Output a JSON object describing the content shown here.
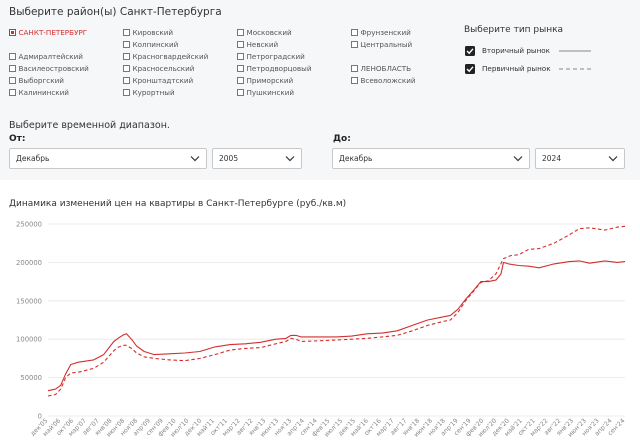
{
  "districts": {
    "title": "Выберите район(ы) Санкт-Петербурга",
    "columns": [
      [
        "САНКТ-ПЕТЕРБУРГ",
        "",
        "Адмиралтейский",
        "Василеостровский",
        "Выборгский",
        "Калининский"
      ],
      [
        "Кировский",
        "Колпинский",
        "Красногвардейский",
        "Красносельский",
        "Кронштадтский",
        "Курортный"
      ],
      [
        "Московский",
        "Невский",
        "Петроградский",
        "Петродворцовый",
        "Приморский",
        "Пушкинский"
      ],
      [
        "Фрунзенский",
        "Центральный",
        "",
        "ЛЕНОБЛАСТЬ",
        "Всеволожский",
        ""
      ]
    ]
  },
  "market": {
    "title": "Выберите тип рынка",
    "items": [
      {
        "label": "Вторичный рынок",
        "line": "solid"
      },
      {
        "label": "Первичный рынок",
        "line": "dashed"
      }
    ]
  },
  "range": {
    "title": "Выберите временной диапазон.",
    "from_label": "От:",
    "to_label": "До:",
    "from_month": "Декабрь",
    "from_year": "2005",
    "to_month": "Декабрь",
    "to_year": "2024"
  },
  "chart_data": {
    "type": "line",
    "title": "Динамика изменений цен на квартиры в Санкт-Петербурге (руб./кв.м)",
    "xlabel": "",
    "ylabel": "",
    "ylim": [
      0,
      250000
    ],
    "yticks": [
      "0",
      "50000",
      "100000",
      "150000",
      "200000",
      "250000"
    ],
    "grid": true,
    "color": "#d32f2f",
    "x_ticks": [
      "дек'05",
      "май'06",
      "окт'06",
      "мар'07",
      "авг'07",
      "янв'08",
      "июн'08",
      "ноя'08",
      "апр'09",
      "сен'09",
      "фев'10",
      "июл'10",
      "дек'10",
      "май'11",
      "окт'11",
      "мар'12",
      "авг'12",
      "янв'13",
      "июн'13",
      "ноя'13",
      "апр'14",
      "сен'14",
      "фев'15",
      "июл'15",
      "дек'15",
      "май'16",
      "окт'16",
      "мар'17",
      "авг'17",
      "янв'18",
      "июн'18",
      "ноя'18",
      "апр'19",
      "сен'19",
      "фев'20",
      "июл'20",
      "дек'20",
      "май'21",
      "окт'21",
      "мар'22",
      "авг'22",
      "янв'23",
      "июн'23",
      "ноя'23",
      "апр'24",
      "сен'24"
    ],
    "series": [
      {
        "style": "solid",
        "values": [
          [
            0,
            33000
          ],
          [
            3,
            35000
          ],
          [
            5,
            40000
          ],
          [
            7,
            55000
          ],
          [
            9,
            67000
          ],
          [
            12,
            70000
          ],
          [
            18,
            73000
          ],
          [
            22,
            80000
          ],
          [
            26,
            97000
          ],
          [
            28,
            102000
          ],
          [
            30,
            106000
          ],
          [
            31,
            107000
          ],
          [
            33,
            100000
          ],
          [
            35,
            91000
          ],
          [
            38,
            84000
          ],
          [
            42,
            80000
          ],
          [
            48,
            81000
          ],
          [
            54,
            82000
          ],
          [
            60,
            84000
          ],
          [
            66,
            90000
          ],
          [
            72,
            93000
          ],
          [
            78,
            94000
          ],
          [
            84,
            96000
          ],
          [
            90,
            100000
          ],
          [
            94,
            101000
          ],
          [
            96,
            105000
          ],
          [
            98,
            105000
          ],
          [
            100,
            103000
          ],
          [
            108,
            103000
          ],
          [
            114,
            103000
          ],
          [
            120,
            104000
          ],
          [
            126,
            107000
          ],
          [
            132,
            108000
          ],
          [
            138,
            111000
          ],
          [
            144,
            118000
          ],
          [
            150,
            125000
          ],
          [
            156,
            129000
          ],
          [
            159,
            131000
          ],
          [
            162,
            139000
          ],
          [
            165,
            152000
          ],
          [
            168,
            163000
          ],
          [
            171,
            175000
          ],
          [
            174,
            175000
          ],
          [
            177,
            177000
          ],
          [
            179,
            185000
          ],
          [
            180,
            200000
          ],
          [
            182,
            198000
          ],
          [
            186,
            196000
          ],
          [
            190,
            195000
          ],
          [
            194,
            193000
          ],
          [
            200,
            198000
          ],
          [
            206,
            201000
          ],
          [
            210,
            202000
          ],
          [
            214,
            199000
          ],
          [
            220,
            202000
          ],
          [
            225,
            200000
          ],
          [
            228,
            201000
          ]
        ]
      },
      {
        "style": "dashed",
        "values": [
          [
            0,
            26000
          ],
          [
            3,
            28000
          ],
          [
            5,
            35000
          ],
          [
            7,
            50000
          ],
          [
            9,
            56000
          ],
          [
            12,
            57000
          ],
          [
            18,
            62000
          ],
          [
            22,
            70000
          ],
          [
            26,
            85000
          ],
          [
            28,
            90000
          ],
          [
            30,
            92000
          ],
          [
            31,
            92000
          ],
          [
            33,
            88000
          ],
          [
            35,
            82000
          ],
          [
            38,
            77000
          ],
          [
            42,
            75000
          ],
          [
            48,
            73000
          ],
          [
            54,
            72000
          ],
          [
            60,
            75000
          ],
          [
            66,
            80000
          ],
          [
            72,
            86000
          ],
          [
            78,
            88000
          ],
          [
            84,
            89000
          ],
          [
            90,
            94000
          ],
          [
            94,
            97000
          ],
          [
            96,
            101000
          ],
          [
            98,
            100000
          ],
          [
            100,
            97000
          ],
          [
            108,
            98000
          ],
          [
            114,
            99000
          ],
          [
            120,
            100000
          ],
          [
            126,
            101000
          ],
          [
            132,
            103000
          ],
          [
            138,
            105000
          ],
          [
            144,
            111000
          ],
          [
            150,
            118000
          ],
          [
            156,
            123000
          ],
          [
            159,
            125000
          ],
          [
            162,
            135000
          ],
          [
            165,
            150000
          ],
          [
            168,
            162000
          ],
          [
            171,
            174000
          ],
          [
            174,
            176000
          ],
          [
            177,
            185000
          ],
          [
            180,
            205000
          ],
          [
            183,
            209000
          ],
          [
            186,
            210000
          ],
          [
            190,
            217000
          ],
          [
            194,
            218000
          ],
          [
            200,
            225000
          ],
          [
            206,
            236000
          ],
          [
            210,
            244000
          ],
          [
            214,
            245000
          ],
          [
            220,
            242000
          ],
          [
            225,
            246000
          ],
          [
            228,
            247000
          ]
        ]
      }
    ]
  }
}
